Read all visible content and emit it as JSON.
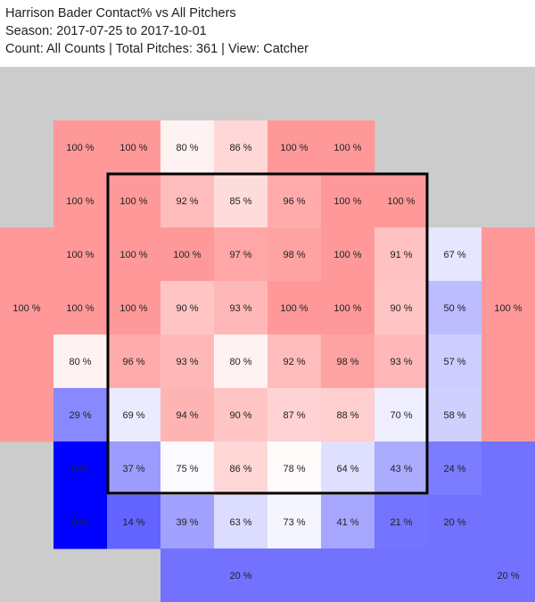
{
  "header": {
    "title": "Harrison Bader Contact% vs All Pitchers",
    "season_prefix": "Season:",
    "season": "2017-07-25 to 2017-10-01",
    "count_prefix": "Count:",
    "count": "All Counts",
    "total_prefix": "Total Pitches:",
    "total": "361",
    "view_prefix": "View:",
    "view": "Catcher",
    "separator": "|"
  },
  "colors": {
    "background": "#cccccc",
    "high": "#ff9999",
    "mid": "#ffffff",
    "low": "#0000ff",
    "zone_outline": "#000000"
  },
  "chart_data": {
    "type": "heatmap",
    "metric": "Contact%",
    "grid_columns": 10,
    "grid_rows": 10,
    "strike_zone": {
      "col_start": 2,
      "col_end": 8,
      "row_start": 2,
      "row_end": 8
    },
    "cells": [
      {
        "row": 1,
        "col": 1,
        "value": 100,
        "label": "100 %"
      },
      {
        "row": 1,
        "col": 2,
        "value": 100,
        "label": "100 %"
      },
      {
        "row": 1,
        "col": 3,
        "value": 80,
        "label": "80 %"
      },
      {
        "row": 1,
        "col": 4,
        "value": 86,
        "label": "86 %"
      },
      {
        "row": 1,
        "col": 5,
        "value": 100,
        "label": "100 %"
      },
      {
        "row": 1,
        "col": 6,
        "value": 100,
        "label": "100 %"
      },
      {
        "row": 2,
        "col": 1,
        "value": 100,
        "label": "100 %"
      },
      {
        "row": 2,
        "col": 2,
        "value": 100,
        "label": "100 %"
      },
      {
        "row": 2,
        "col": 3,
        "value": 92,
        "label": "92 %"
      },
      {
        "row": 2,
        "col": 4,
        "value": 85,
        "label": "85 %"
      },
      {
        "row": 2,
        "col": 5,
        "value": 96,
        "label": "96 %"
      },
      {
        "row": 2,
        "col": 6,
        "value": 100,
        "label": "100 %"
      },
      {
        "row": 2,
        "col": 7,
        "value": 100,
        "label": "100 %"
      },
      {
        "row": 3,
        "col": 0,
        "value": 100,
        "label": ""
      },
      {
        "row": 3,
        "col": 1,
        "value": 100,
        "label": "100 %"
      },
      {
        "row": 3,
        "col": 2,
        "value": 100,
        "label": "100 %"
      },
      {
        "row": 3,
        "col": 3,
        "value": 100,
        "label": "100 %"
      },
      {
        "row": 3,
        "col": 4,
        "value": 97,
        "label": "97 %"
      },
      {
        "row": 3,
        "col": 5,
        "value": 98,
        "label": "98 %"
      },
      {
        "row": 3,
        "col": 6,
        "value": 100,
        "label": "100 %"
      },
      {
        "row": 3,
        "col": 7,
        "value": 91,
        "label": "91 %"
      },
      {
        "row": 3,
        "col": 8,
        "value": 67,
        "label": "67 %"
      },
      {
        "row": 3,
        "col": 9,
        "value": 100,
        "label": ""
      },
      {
        "row": 4,
        "col": 0,
        "value": 100,
        "label": "100 %"
      },
      {
        "row": 4,
        "col": 1,
        "value": 100,
        "label": "100 %"
      },
      {
        "row": 4,
        "col": 2,
        "value": 100,
        "label": "100 %"
      },
      {
        "row": 4,
        "col": 3,
        "value": 90,
        "label": "90 %"
      },
      {
        "row": 4,
        "col": 4,
        "value": 93,
        "label": "93 %"
      },
      {
        "row": 4,
        "col": 5,
        "value": 100,
        "label": "100 %"
      },
      {
        "row": 4,
        "col": 6,
        "value": 100,
        "label": "100 %"
      },
      {
        "row": 4,
        "col": 7,
        "value": 90,
        "label": "90 %"
      },
      {
        "row": 4,
        "col": 8,
        "value": 50,
        "label": "50 %"
      },
      {
        "row": 4,
        "col": 9,
        "value": 100,
        "label": "100 %"
      },
      {
        "row": 5,
        "col": 0,
        "value": 100,
        "label": ""
      },
      {
        "row": 5,
        "col": 1,
        "value": 80,
        "label": "80 %"
      },
      {
        "row": 5,
        "col": 2,
        "value": 96,
        "label": "96 %"
      },
      {
        "row": 5,
        "col": 3,
        "value": 93,
        "label": "93 %"
      },
      {
        "row": 5,
        "col": 4,
        "value": 80,
        "label": "80 %"
      },
      {
        "row": 5,
        "col": 5,
        "value": 92,
        "label": "92 %"
      },
      {
        "row": 5,
        "col": 6,
        "value": 98,
        "label": "98 %"
      },
      {
        "row": 5,
        "col": 7,
        "value": 93,
        "label": "93 %"
      },
      {
        "row": 5,
        "col": 8,
        "value": 57,
        "label": "57 %"
      },
      {
        "row": 5,
        "col": 9,
        "value": 100,
        "label": ""
      },
      {
        "row": 6,
        "col": 0,
        "value": 100,
        "label": ""
      },
      {
        "row": 6,
        "col": 1,
        "value": 29,
        "label": "29 %"
      },
      {
        "row": 6,
        "col": 2,
        "value": 69,
        "label": "69 %"
      },
      {
        "row": 6,
        "col": 3,
        "value": 94,
        "label": "94 %"
      },
      {
        "row": 6,
        "col": 4,
        "value": 90,
        "label": "90 %"
      },
      {
        "row": 6,
        "col": 5,
        "value": 87,
        "label": "87 %"
      },
      {
        "row": 6,
        "col": 6,
        "value": 88,
        "label": "88 %"
      },
      {
        "row": 6,
        "col": 7,
        "value": 70,
        "label": "70 %"
      },
      {
        "row": 6,
        "col": 8,
        "value": 58,
        "label": "58 %"
      },
      {
        "row": 6,
        "col": 9,
        "value": 100,
        "label": ""
      },
      {
        "row": 7,
        "col": 1,
        "value": 0,
        "label": "0 %"
      },
      {
        "row": 7,
        "col": 2,
        "value": 37,
        "label": "37 %"
      },
      {
        "row": 7,
        "col": 3,
        "value": 75,
        "label": "75 %"
      },
      {
        "row": 7,
        "col": 4,
        "value": 86,
        "label": "86 %"
      },
      {
        "row": 7,
        "col": 5,
        "value": 78,
        "label": "78 %"
      },
      {
        "row": 7,
        "col": 6,
        "value": 64,
        "label": "64 %"
      },
      {
        "row": 7,
        "col": 7,
        "value": 43,
        "label": "43 %"
      },
      {
        "row": 7,
        "col": 8,
        "value": 24,
        "label": "24 %"
      },
      {
        "row": 7,
        "col": 9,
        "value": 20,
        "label": ""
      },
      {
        "row": 8,
        "col": 1,
        "value": 0,
        "label": "0 %"
      },
      {
        "row": 8,
        "col": 2,
        "value": 14,
        "label": "14 %"
      },
      {
        "row": 8,
        "col": 3,
        "value": 39,
        "label": "39 %"
      },
      {
        "row": 8,
        "col": 4,
        "value": 63,
        "label": "63 %"
      },
      {
        "row": 8,
        "col": 5,
        "value": 73,
        "label": "73 %"
      },
      {
        "row": 8,
        "col": 6,
        "value": 41,
        "label": "41 %"
      },
      {
        "row": 8,
        "col": 7,
        "value": 21,
        "label": "21 %"
      },
      {
        "row": 8,
        "col": 8,
        "value": 20,
        "label": "20 %"
      },
      {
        "row": 8,
        "col": 9,
        "value": 20,
        "label": ""
      },
      {
        "row": 9,
        "col": 3,
        "value": 20,
        "label": ""
      },
      {
        "row": 9,
        "col": 4,
        "value": 20,
        "label": "20 %"
      },
      {
        "row": 9,
        "col": 5,
        "value": 20,
        "label": ""
      },
      {
        "row": 9,
        "col": 6,
        "value": 20,
        "label": ""
      },
      {
        "row": 9,
        "col": 7,
        "value": 20,
        "label": ""
      },
      {
        "row": 9,
        "col": 8,
        "value": 20,
        "label": ""
      },
      {
        "row": 9,
        "col": 9,
        "value": 20,
        "label": "20 %"
      }
    ]
  }
}
